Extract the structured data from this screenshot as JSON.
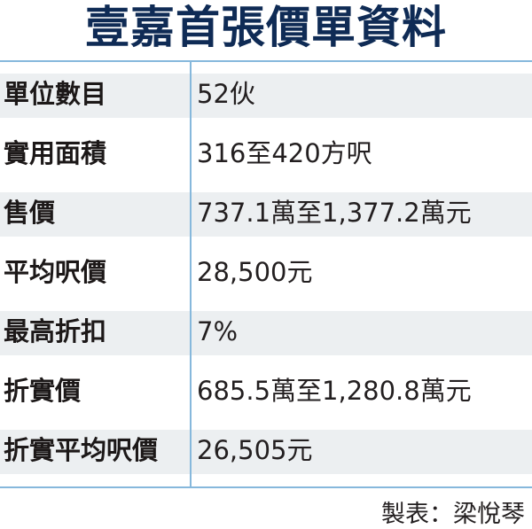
{
  "title": "壹嘉首張價單資料",
  "rows": [
    {
      "label": "單位數目",
      "value": "52伙"
    },
    {
      "label": "實用面積",
      "value": "316至420方呎"
    },
    {
      "label": "售價",
      "value": "737.1萬至1,377.2萬元"
    },
    {
      "label": "平均呎價",
      "value": "28,500元"
    },
    {
      "label": "最高折扣",
      "value": "7%"
    },
    {
      "label": "折實價",
      "value": "685.5萬至1,280.8萬元"
    },
    {
      "label": "折實平均呎價",
      "value": "26,505元"
    }
  ],
  "credit": "製表：梁悅琴",
  "colors": {
    "title": "#0f2b55",
    "rule": "#86b8dc",
    "row_shade": "#eceff1"
  }
}
